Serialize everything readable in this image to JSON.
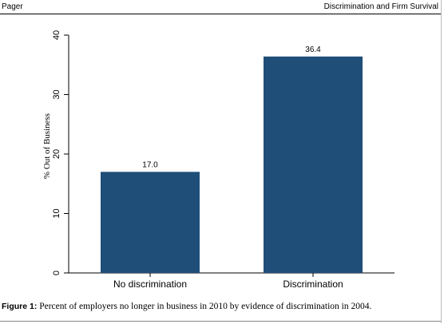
{
  "header": {
    "left": "Pager",
    "right": "Discrimination and Firm Survival"
  },
  "chart_data": {
    "type": "bar",
    "categories": [
      "No discrimination",
      "Discrimination"
    ],
    "values": [
      17.0,
      36.4
    ],
    "data_labels": [
      "17.0",
      "36.4"
    ],
    "ylabel": "% Out of Business",
    "ylim": [
      0,
      40
    ],
    "yticks": [
      0,
      10,
      20,
      30,
      40
    ],
    "grid": false,
    "bar_color": "#1f4e79"
  },
  "caption": {
    "label": "Figure 1:",
    "text": " Percent of employers no longer in business in 2010 by evidence of discrimination in 2004."
  }
}
